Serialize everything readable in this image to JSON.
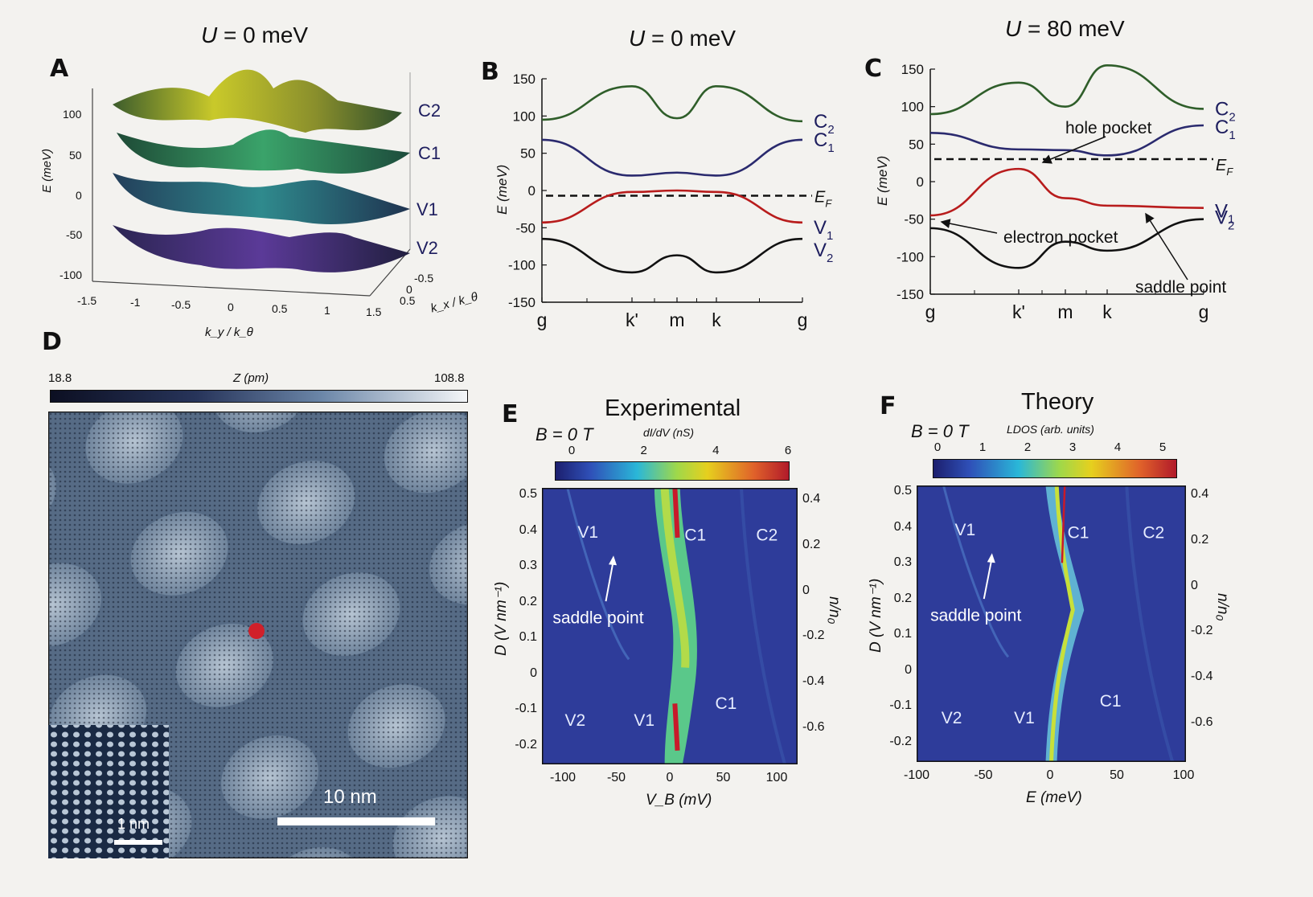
{
  "panels": {
    "A": {
      "letter": "A",
      "title_var": "U",
      "title_rest": " = 0 meV",
      "ylabel": "E (meV)",
      "xlabel": "k_y / k_θ",
      "zlabel": "k_x / k_θ",
      "band_labels": [
        "C2",
        "C1",
        "V1",
        "V2"
      ]
    },
    "B": {
      "letter": "B",
      "title_var": "U",
      "title_rest": " = 0 meV"
    },
    "C": {
      "letter": "C",
      "title_var": "U",
      "title_rest": " = 80 meV",
      "annotations": [
        "hole pocket",
        "electron pocket",
        "saddle point"
      ]
    },
    "D": {
      "letter": "D",
      "colorbar_min": "18.8",
      "colorbar_max": "108.8",
      "colorbar_label": "Z (pm)",
      "scale_main": "10 nm",
      "scale_inset": "1 nm"
    },
    "E": {
      "letter": "E",
      "title": "Experimental",
      "field": "B = 0 T",
      "cb_label": "dI/dV (nS)",
      "cb_ticks": [
        "0",
        "2",
        "4",
        "6"
      ],
      "xlabel": "V_B (mV)",
      "labels": [
        "V1",
        "C1",
        "C2",
        "V2",
        "V1",
        "C1"
      ],
      "annotation": "saddle point"
    },
    "F": {
      "letter": "F",
      "title": "Theory",
      "field": "B = 0 T",
      "cb_label": "LDOS (arb. units)",
      "cb_ticks": [
        "0",
        "1",
        "2",
        "3",
        "4",
        "5"
      ],
      "xlabel": "E (meV)",
      "labels": [
        "V1",
        "C1",
        "C2",
        "V2",
        "V1",
        "C1"
      ],
      "annotation": "saddle point"
    }
  },
  "chart_data": [
    {
      "id": "B",
      "type": "line",
      "categories": [
        "g",
        "k'",
        "m",
        "k",
        "g"
      ],
      "ylabel": "E (meV)",
      "ylim": [
        -150,
        150
      ],
      "yticks": [
        "150",
        "100",
        "50",
        "0",
        "-50",
        "-100",
        "-150"
      ],
      "fermi_label": "E_F",
      "fermi_level": -7,
      "series": [
        {
          "name": "C2",
          "color": "#2f5e2a",
          "values": [
            95,
            140,
            97,
            140,
            93
          ]
        },
        {
          "name": "C1",
          "color": "#2a2a6e",
          "values": [
            68,
            20,
            24,
            20,
            68
          ]
        },
        {
          "name": "V1",
          "color": "#b81c1c",
          "values": [
            -43,
            -2,
            0,
            -2,
            -43
          ]
        },
        {
          "name": "V2",
          "color": "#111111",
          "values": [
            -65,
            -110,
            -87,
            -110,
            -65
          ]
        }
      ]
    },
    {
      "id": "C",
      "type": "line",
      "categories": [
        "g",
        "k'",
        "m",
        "k",
        "g"
      ],
      "ylabel": "E (meV)",
      "ylim": [
        -150,
        150
      ],
      "yticks": [
        "150",
        "100",
        "50",
        "0",
        "-50",
        "-100",
        "-150"
      ],
      "fermi_label": "E_F",
      "fermi_level": 30,
      "series": [
        {
          "name": "C2",
          "color": "#2f5e2a",
          "values": [
            90,
            132,
            100,
            155,
            97
          ]
        },
        {
          "name": "C1",
          "color": "#2a2a6e",
          "values": [
            65,
            43,
            42,
            35,
            75
          ]
        },
        {
          "name": "V1",
          "color": "#b81c1c",
          "values": [
            -45,
            17,
            -22,
            -32,
            -35
          ]
        },
        {
          "name": "V2",
          "color": "#111111",
          "values": [
            -62,
            -115,
            -80,
            -92,
            -50
          ]
        }
      ]
    },
    {
      "id": "E",
      "type": "heatmap",
      "xlabel": "V_B (mV)",
      "ylabel": "D (V nm⁻¹)",
      "y2label": "n/n₀",
      "xticks": [
        "-100",
        "-50",
        "0",
        "50",
        "100"
      ],
      "yticks": [
        "0.5",
        "0.4",
        "0.3",
        "0.2",
        "0.1",
        "0",
        "-0.1",
        "-0.2"
      ],
      "y2ticks": [
        "0.4",
        "0.2",
        "0",
        "-0.2",
        "-0.4",
        "-0.6"
      ]
    },
    {
      "id": "F",
      "type": "heatmap",
      "xlabel": "E (meV)",
      "ylabel": "D (V nm⁻¹)",
      "y2label": "n/n₀",
      "xticks": [
        "-100",
        "-50",
        "0",
        "50",
        "100"
      ],
      "yticks": [
        "0.5",
        "0.4",
        "0.3",
        "0.2",
        "0.1",
        "0",
        "-0.1",
        "-0.2"
      ],
      "y2ticks": [
        "0.4",
        "0.2",
        "0",
        "-0.2",
        "-0.4",
        "-0.6"
      ]
    },
    {
      "id": "A",
      "type": "surface",
      "zticks": [
        "100",
        "50",
        "0",
        "-50",
        "-100"
      ],
      "xticks": [
        "-1.5",
        "-1",
        "-0.5",
        "0",
        "0.5",
        "1",
        "1.5"
      ],
      "depth_ticks": [
        "-0.5",
        "0",
        "0.5"
      ]
    }
  ]
}
